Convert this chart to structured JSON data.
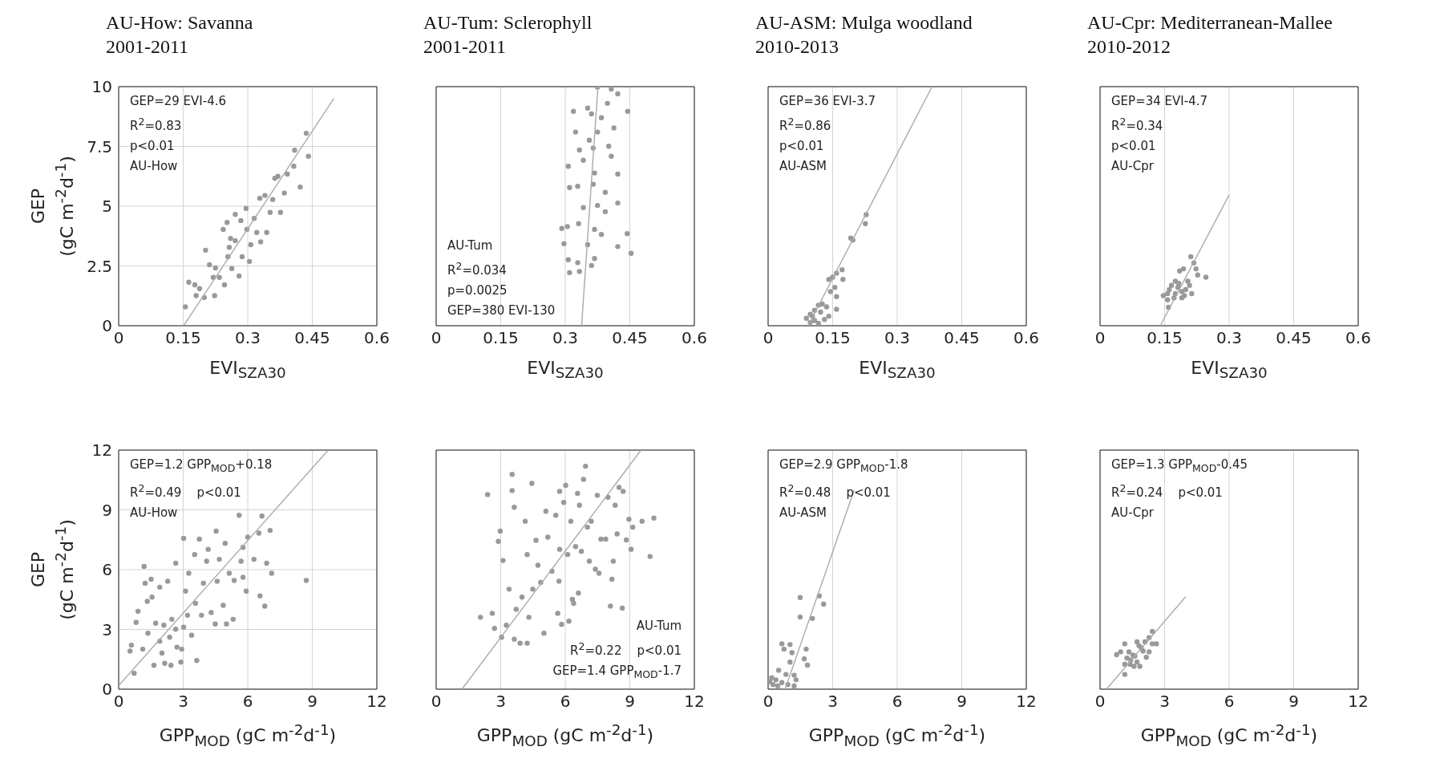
{
  "chart_data": [
    {
      "type": "scatter",
      "title": "AU-How: Savanna",
      "subtitle": "2001-2011",
      "xlabel": "EVI$_{SZA30}$",
      "ylabel": "GEP\n(gC m$^{-2}$d$^{-1}$)",
      "xlim": [
        0,
        0.6
      ],
      "xticks": [
        0,
        0.15,
        0.3,
        0.45,
        0.6
      ],
      "ylim": [
        0,
        10
      ],
      "yticks": [
        0,
        2.5,
        5,
        7.5,
        10
      ],
      "grid": true,
      "marker": "circle",
      "annotations": [
        "GEP=29 EVI-4.6",
        "R$^{2}$=0.83",
        "p<0.01",
        "AU-How"
      ],
      "series": [
        {
          "color": "#999999",
          "x": [
            0.155,
            0.163,
            0.177,
            0.18,
            0.188,
            0.199,
            0.202,
            0.211,
            0.22,
            0.223,
            0.225,
            0.234,
            0.243,
            0.246,
            0.252,
            0.254,
            0.257,
            0.26,
            0.263,
            0.271,
            0.271,
            0.28,
            0.284,
            0.287,
            0.296,
            0.298,
            0.304,
            0.307,
            0.315,
            0.321,
            0.328,
            0.33,
            0.34,
            0.344,
            0.352,
            0.358,
            0.363,
            0.37,
            0.376,
            0.385,
            0.392,
            0.407,
            0.409,
            0.422,
            0.436,
            0.441
          ],
          "values": [
            0.79,
            1.82,
            1.71,
            1.26,
            1.55,
            1.18,
            3.16,
            2.55,
            2.02,
            1.26,
            2.42,
            2.02,
            4.03,
            1.71,
            4.32,
            2.89,
            3.28,
            3.65,
            2.39,
            4.66,
            3.56,
            2.08,
            4.4,
            2.89,
            4.91,
            4.03,
            2.69,
            3.39,
            4.49,
            3.9,
            5.33,
            3.51,
            5.45,
            3.9,
            4.74,
            5.28,
            6.17,
            6.25,
            4.74,
            5.55,
            6.34,
            6.67,
            7.34,
            5.8,
            8.05,
            7.09
          ]
        },
        {
          "type": "line",
          "marker": "none",
          "color": "#aaaaaa",
          "x": [
            0.151,
            0.5
          ],
          "values": [
            0,
            9.5
          ]
        }
      ]
    },
    {
      "type": "scatter",
      "title": "AU-Tum: Sclerophyll",
      "subtitle": "2001-2011",
      "xlabel": "EVI$_{SZA30}$",
      "xlim": [
        0,
        0.6
      ],
      "xticks": [
        0,
        0.15,
        0.3,
        0.45,
        0.6
      ],
      "ylim": [
        0,
        10
      ],
      "yticks": [
        0,
        2.5,
        5,
        7.5,
        10
      ],
      "grid": true,
      "marker": "circle",
      "tick_labels": "x",
      "annotations": [
        "AU-Tum",
        "R$^{2}$=0.034",
        "p=0.0025",
        "GEP=380 EVI-130"
      ],
      "series": [
        {
          "color": "#999999",
          "x": [
            0.375,
            0.407,
            0.422,
            0.319,
            0.352,
            0.361,
            0.384,
            0.398,
            0.445,
            0.324,
            0.356,
            0.365,
            0.333,
            0.375,
            0.413,
            0.401,
            0.307,
            0.342,
            0.407,
            0.422,
            0.368,
            0.31,
            0.329,
            0.365,
            0.393,
            0.422,
            0.342,
            0.375,
            0.393,
            0.292,
            0.305,
            0.331,
            0.368,
            0.384,
            0.444,
            0.297,
            0.352,
            0.422,
            0.453,
            0.307,
            0.368,
            0.329,
            0.31,
            0.333,
            0.361
          ],
          "values": [
            9.98,
            9.9,
            9.7,
            8.97,
            9.1,
            8.86,
            8.7,
            9.3,
            8.97,
            8.1,
            7.76,
            7.43,
            7.35,
            8.1,
            8.27,
            7.51,
            6.67,
            6.92,
            7.09,
            6.34,
            6.39,
            5.78,
            5.83,
            5.92,
            5.58,
            5.13,
            4.94,
            5.03,
            4.77,
            4.07,
            4.15,
            4.27,
            4.03,
            3.82,
            3.85,
            3.43,
            3.39,
            3.31,
            3.03,
            2.76,
            2.81,
            2.64,
            2.22,
            2.27,
            2.52
          ]
        },
        {
          "type": "line",
          "marker": "none",
          "color": "#aaaaaa",
          "x": [
            0.338,
            0.376
          ],
          "values": [
            0,
            10
          ]
        }
      ]
    },
    {
      "type": "scatter",
      "title": "AU-ASM: Mulga woodland",
      "subtitle": "2010-2013",
      "xlabel": "EVI$_{SZA30}$",
      "xlim": [
        0,
        0.6
      ],
      "xticks": [
        0,
        0.15,
        0.3,
        0.45,
        0.6
      ],
      "ylim": [
        0,
        10
      ],
      "yticks": [
        0,
        2.5,
        5,
        7.5,
        10
      ],
      "grid": true,
      "marker": "circle",
      "tick_labels": "x",
      "annotations": [
        "GEP=36 EVI-3.7",
        "R$^{2}$=0.86",
        "p<0.01",
        "AU-ASM"
      ],
      "series": [
        {
          "color": "#999999",
          "x": [
            0.228,
            0.226,
            0.192,
            0.197,
            0.172,
            0.159,
            0.15,
            0.141,
            0.174,
            0.155,
            0.145,
            0.159,
            0.117,
            0.126,
            0.136,
            0.159,
            0.108,
            0.098,
            0.122,
            0.089,
            0.108,
            0.131,
            0.098,
            0.117,
            0.141,
            0.103
          ],
          "values": [
            4.65,
            4.27,
            3.67,
            3.58,
            2.34,
            2.2,
            2.03,
            1.94,
            1.94,
            1.6,
            1.43,
            1.22,
            0.86,
            0.91,
            0.79,
            0.69,
            0.65,
            0.48,
            0.57,
            0.31,
            0.22,
            0.26,
            0.14,
            0.1,
            0.4,
            0.4
          ]
        },
        {
          "type": "line",
          "marker": "none",
          "color": "#aaaaaa",
          "x": [
            0.093,
            0.381
          ],
          "values": [
            0,
            10
          ]
        }
      ]
    },
    {
      "type": "scatter",
      "title": "AU-Cpr: Mediterranean-Mallee",
      "subtitle": "2010-2012",
      "xlabel": "EVI$_{SZA30}$",
      "xlim": [
        0,
        0.6
      ],
      "xticks": [
        0,
        0.15,
        0.3,
        0.45,
        0.6
      ],
      "ylim": [
        0,
        10
      ],
      "yticks": [
        0,
        2.5,
        5,
        7.5,
        10
      ],
      "grid": true,
      "marker": "circle",
      "tick_labels": "x",
      "annotations": [
        "GEP=34 EVI-4.7",
        "R$^{2}$=0.34",
        "p<0.01",
        "AU-Cpr"
      ],
      "series": [
        {
          "color": "#999999",
          "x": [
            0.211,
            0.218,
            0.246,
            0.223,
            0.227,
            0.185,
            0.194,
            0.175,
            0.166,
            0.204,
            0.199,
            0.19,
            0.175,
            0.157,
            0.147,
            0.172,
            0.19,
            0.157,
            0.213,
            0.208,
            0.181,
            0.161,
            0.196,
            0.159,
            0.183
          ],
          "values": [
            2.89,
            2.63,
            2.03,
            2.38,
            2.12,
            2.29,
            2.38,
            1.86,
            1.69,
            1.86,
            1.51,
            1.43,
            1.34,
            1.34,
            1.26,
            1.17,
            1.17,
            1.08,
            1.34,
            1.69,
            1.6,
            1.51,
            1.26,
            0.77,
            1.77
          ]
        },
        {
          "type": "line",
          "marker": "none",
          "color": "#aaaaaa",
          "x": [
            0.14,
            0.3
          ],
          "values": [
            0,
            5.47
          ]
        }
      ]
    },
    {
      "type": "scatter",
      "xlabel": "GPP$_{MOD}$ (gC m$^{-2}$d$^{-1}$)",
      "ylabel": "GEP\n(gC m$^{-2}$d$^{-1}$)",
      "xlim": [
        0,
        12
      ],
      "xticks": [
        0,
        3,
        6,
        9,
        12
      ],
      "ylim": [
        0,
        12
      ],
      "yticks": [
        0,
        3,
        6,
        9,
        12
      ],
      "grid": true,
      "marker": "circle",
      "annotations": [
        "GEP=1.2 GPP$_{MOD}$+0.18",
        "R$^{2}$=0.49    p<0.01",
        "AU-How"
      ],
      "series": [
        {
          "color": "#999999",
          "x": [
            0.72,
            0.53,
            0.59,
            0.81,
            0.9,
            1.18,
            1.12,
            1.23,
            1.33,
            1.36,
            1.51,
            1.55,
            1.64,
            1.72,
            1.91,
            1.91,
            2.01,
            2.1,
            2.14,
            2.28,
            2.37,
            2.43,
            2.47,
            2.65,
            2.65,
            2.71,
            2.89,
            2.93,
            3.02,
            3.02,
            3.11,
            3.2,
            3.26,
            3.39,
            3.53,
            3.57,
            3.63,
            3.75,
            3.85,
            3.94,
            4.09,
            4.16,
            4.3,
            4.49,
            4.53,
            4.58,
            4.68,
            4.86,
            4.95,
            5.01,
            5.14,
            5.32,
            5.37,
            5.6,
            5.69,
            5.78,
            5.93,
            5.78,
            6.0,
            6.29,
            6.52,
            6.57,
            6.66,
            6.79,
            6.88,
            7.04,
            7.11,
            8.72
          ],
          "values": [
            0.8,
            1.91,
            2.21,
            3.35,
            3.91,
            6.16,
            2.01,
            5.32,
            4.41,
            2.81,
            5.52,
            4.62,
            1.2,
            3.31,
            2.41,
            5.12,
            1.81,
            3.21,
            1.3,
            5.42,
            2.61,
            1.2,
            3.51,
            6.32,
            3.01,
            2.11,
            1.36,
            2.01,
            7.57,
            3.11,
            4.92,
            3.71,
            5.82,
            2.71,
            6.76,
            4.31,
            1.44,
            7.53,
            3.71,
            5.32,
            6.42,
            7.02,
            3.85,
            3.27,
            7.93,
            5.42,
            6.52,
            4.21,
            7.32,
            3.27,
            5.82,
            3.51,
            5.46,
            8.73,
            6.42,
            7.12,
            4.92,
            5.62,
            7.63,
            6.52,
            7.83,
            4.68,
            8.69,
            4.17,
            6.32,
            7.97,
            5.82,
            5.46
          ]
        },
        {
          "type": "line",
          "marker": "none",
          "color": "#aaaaaa",
          "x": [
            0,
            9.74
          ],
          "values": [
            0.18,
            12
          ]
        }
      ]
    },
    {
      "type": "scatter",
      "xlabel": "GPP$_{MOD}$ (gC m$^{-2}$d$^{-1}$)",
      "xlim": [
        0,
        12
      ],
      "xticks": [
        0,
        3,
        6,
        9,
        12
      ],
      "ylim": [
        0,
        12
      ],
      "yticks": [
        0,
        3,
        6,
        9,
        12
      ],
      "grid": true,
      "marker": "circle",
      "tick_labels": "x",
      "annotations": [
        "AU-Tum",
        "R$^{2}$=0.22    p<0.01",
        "GEP=1.4 GPP$_{MOD}$-1.7"
      ],
      "series": [
        {
          "color": "#999999",
          "x": [
            2.06,
            2.39,
            2.61,
            2.71,
            2.89,
            2.98,
            3.04,
            3.11,
            3.26,
            3.39,
            3.53,
            3.53,
            3.63,
            3.63,
            3.72,
            3.9,
            3.99,
            4.14,
            4.23,
            4.23,
            4.31,
            4.45,
            4.49,
            4.64,
            4.73,
            4.86,
            5.01,
            5.1,
            5.19,
            5.38,
            5.56,
            5.65,
            5.71,
            5.74,
            5.74,
            5.83,
            5.93,
            6.02,
            6.11,
            6.17,
            6.26,
            6.33,
            6.39,
            6.48,
            6.57,
            6.61,
            6.66,
            6.75,
            6.85,
            6.94,
            7.03,
            7.12,
            7.21,
            7.4,
            7.49,
            7.57,
            7.66,
            7.88,
            7.99,
            8.1,
            8.17,
            8.23,
            8.32,
            8.41,
            8.5,
            8.65,
            8.69,
            8.84,
            8.96,
            9.06,
            9.14,
            9.57,
            9.94,
            10.12
          ],
          "values": [
            3.61,
            9.77,
            3.81,
            3.05,
            7.42,
            7.93,
            2.61,
            6.46,
            3.21,
            5.02,
            10.78,
            9.97,
            9.13,
            2.51,
            4.01,
            2.31,
            4.62,
            8.43,
            6.76,
            2.31,
            3.61,
            10.33,
            5.02,
            7.47,
            6.22,
            5.36,
            2.81,
            8.93,
            7.63,
            5.92,
            8.73,
            3.81,
            5.42,
            7.02,
            9.93,
            3.25,
            9.37,
            10.23,
            6.76,
            3.41,
            8.43,
            4.51,
            4.31,
            7.16,
            9.83,
            4.82,
            9.23,
            6.92,
            10.53,
            11.19,
            8.13,
            6.42,
            8.43,
            6.02,
            9.73,
            5.82,
            7.53,
            7.53,
            9.63,
            4.17,
            5.52,
            6.42,
            9.23,
            7.79,
            10.13,
            4.07,
            9.93,
            7.49,
            8.53,
            7.02,
            8.13,
            8.43,
            6.66,
            8.59
          ]
        },
        {
          "type": "line",
          "marker": "none",
          "color": "#aaaaaa",
          "x": [
            1.2,
            9.52
          ],
          "values": [
            0,
            12
          ]
        }
      ]
    },
    {
      "type": "scatter",
      "xlabel": "GPP$_{MOD}$ (gC m$^{-2}$d$^{-1}$)",
      "xlim": [
        0,
        12
      ],
      "xticks": [
        0,
        3,
        6,
        9,
        12
      ],
      "ylim": [
        0,
        12
      ],
      "yticks": [
        0,
        3,
        6,
        9,
        12
      ],
      "grid": true,
      "marker": "circle",
      "tick_labels": "x",
      "annotations": [
        "GEP=2.9 GPP$_{MOD}$-1.8",
        "R$^{2}$=0.48    p<0.01",
        "AU-ASM"
      ],
      "series": [
        {
          "color": "#999999",
          "x": [
            1.49,
            2.38,
            2.58,
            2.06,
            1.49,
            0.64,
            1.02,
            0.74,
            1.11,
            1.77,
            1.68,
            1.83,
            1.02,
            0.49,
            0.17,
            0.36,
            0.83,
            1.21,
            1.3,
            0.64,
            0.92,
            1.21,
            0.23,
            0.45,
            0.08
          ],
          "values": [
            4.6,
            4.68,
            4.27,
            3.55,
            3.62,
            2.28,
            2.24,
            2.01,
            1.83,
            2.01,
            1.52,
            1.21,
            1.36,
            0.95,
            0.58,
            0.47,
            0.74,
            0.7,
            0.47,
            0.33,
            0.23,
            0.16,
            0.23,
            0.16,
            0.37
          ]
        },
        {
          "type": "line",
          "marker": "none",
          "color": "#aaaaaa",
          "x": [
            0.79,
            4.0
          ],
          "values": [
            0,
            10
          ]
        }
      ]
    },
    {
      "type": "scatter",
      "xlabel": "GPP$_{MOD}$ (gC m$^{-2}$d$^{-1}$)",
      "xlim": [
        0,
        12
      ],
      "xticks": [
        0,
        3,
        6,
        9,
        12
      ],
      "ylim": [
        0,
        12
      ],
      "yticks": [
        0,
        3,
        6,
        9,
        12
      ],
      "grid": true,
      "marker": "circle",
      "tick_labels": "x",
      "annotations": [
        "GEP=1.3 GPP$_{MOD}$-0.45",
        "R$^{2}$=0.24    p<0.01",
        "AU-Cpr"
      ],
      "series": [
        {
          "color": "#999999",
          "x": [
            2.43,
            2.28,
            2.62,
            2.43,
            1.72,
            1.81,
            1.15,
            0.77,
            0.96,
            1.34,
            1.53,
            1.91,
            2.0,
            2.28,
            1.43,
            1.72,
            1.15,
            1.58,
            1.85,
            1.25,
            2.15,
            1.15,
            1.62,
            2.09,
            1.4
          ],
          "values": [
            2.9,
            2.59,
            2.28,
            2.28,
            2.38,
            2.18,
            2.28,
            1.73,
            1.87,
            1.87,
            1.71,
            2.08,
            1.91,
            1.87,
            1.46,
            1.36,
            1.25,
            1.15,
            1.15,
            1.56,
            1.6,
            0.74,
            1.66,
            2.38,
            1.25
          ]
        },
        {
          "type": "line",
          "marker": "none",
          "color": "#aaaaaa",
          "x": [
            0.3,
            3.98
          ],
          "values": [
            0,
            4.64
          ]
        }
      ]
    }
  ]
}
